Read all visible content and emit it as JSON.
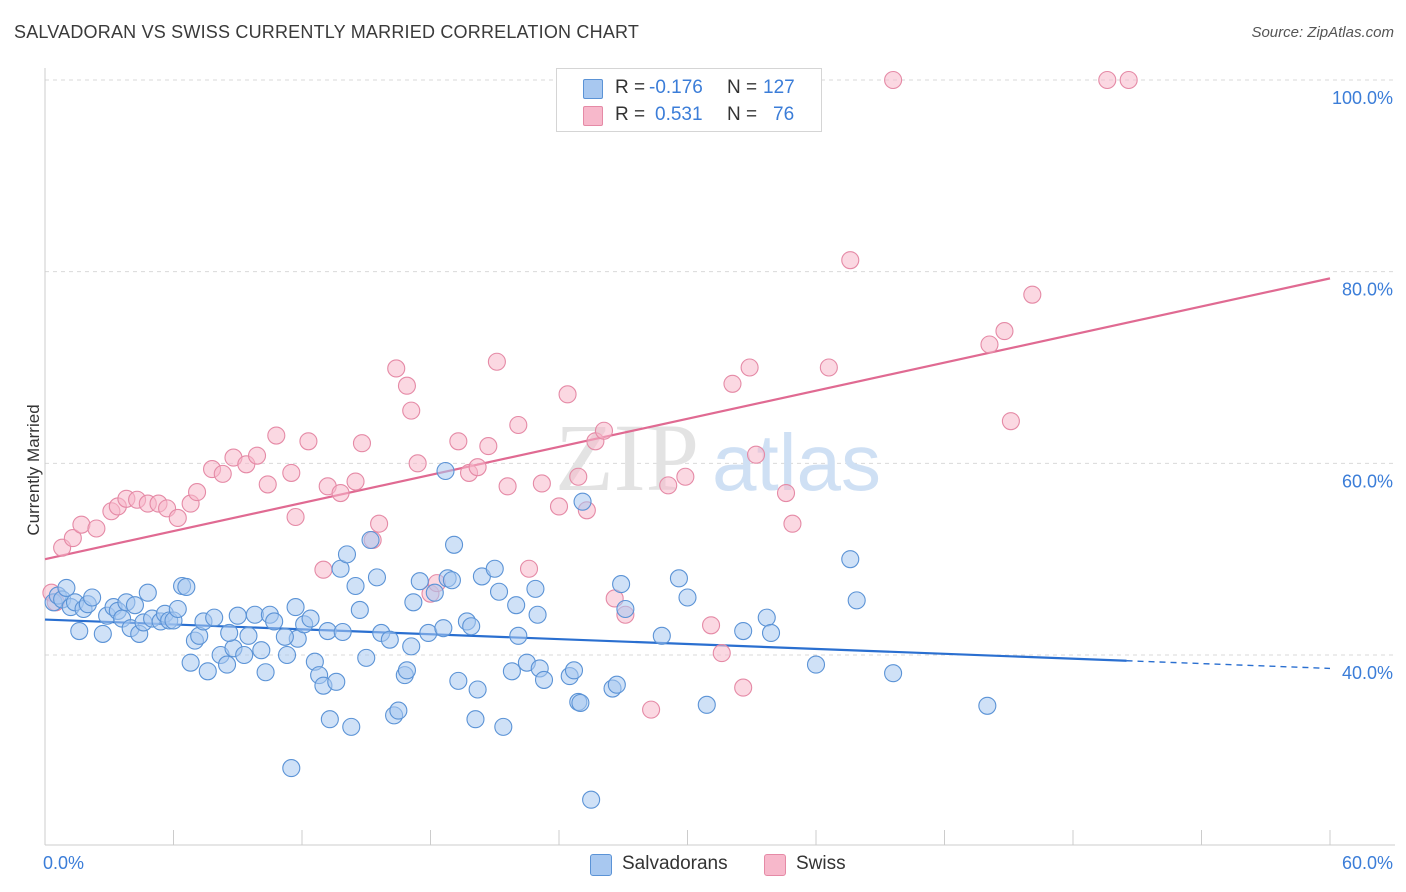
{
  "title": "SALVADORAN VS SWISS CURRENTLY MARRIED CORRELATION CHART",
  "source": "Source: ZipAtlas.com",
  "watermark": {
    "zip": "ZIP",
    "atlas": "atlas"
  },
  "legend": {
    "rows": [
      {
        "r_label": "R =",
        "r_value": "-0.176",
        "n_label": "N =",
        "n_value": "127",
        "color": "#a8c8f0"
      },
      {
        "r_label": "R =",
        "r_value": "0.531",
        "n_label": "N =",
        "n_value": "76",
        "color": "#f7b8cb"
      }
    ]
  },
  "bottom_legend": [
    {
      "label": "Salvadorans",
      "color": "#a8c8f0"
    },
    {
      "label": "Swiss",
      "color": "#f7b8cb"
    }
  ],
  "colors": {
    "blue_fill": "#a8c8f0",
    "blue_stroke": "#5b93d6",
    "blue_line": "#2a6fd0",
    "pink_fill": "#f7b8cb",
    "pink_stroke": "#e58aa6",
    "pink_line": "#e06a92",
    "tick_label": "#3b7dd8",
    "grid": "#d9d9d9"
  },
  "chart_data": {
    "type": "scatter",
    "xlabel": "",
    "ylabel": "Currently Married",
    "xlim": [
      0,
      60
    ],
    "ylim": [
      20,
      102
    ],
    "x_tick_labels": [
      {
        "value": 0,
        "label": "0.0%"
      },
      {
        "value": 60,
        "label": "60.0%"
      }
    ],
    "y_tick_labels": [
      {
        "value": 40,
        "label": "40.0%"
      },
      {
        "value": 60,
        "label": "60.0%"
      },
      {
        "value": 80,
        "label": "80.0%"
      },
      {
        "value": 100,
        "label": "100.0%"
      }
    ],
    "grid": true,
    "series": [
      {
        "name": "Salvadorans",
        "points": [
          [
            0.4,
            45.5
          ],
          [
            0.6,
            46.2
          ],
          [
            0.8,
            45.8
          ],
          [
            1.0,
            47.0
          ],
          [
            1.2,
            45.0
          ],
          [
            1.4,
            45.5
          ],
          [
            1.6,
            42.5
          ],
          [
            1.8,
            44.8
          ],
          [
            2.0,
            45.3
          ],
          [
            2.2,
            46.0
          ],
          [
            2.7,
            42.2
          ],
          [
            2.9,
            44.1
          ],
          [
            3.2,
            45.0
          ],
          [
            3.4,
            44.6
          ],
          [
            3.6,
            43.8
          ],
          [
            3.8,
            45.5
          ],
          [
            4.0,
            42.8
          ],
          [
            4.2,
            45.2
          ],
          [
            4.4,
            42.2
          ],
          [
            4.6,
            43.4
          ],
          [
            4.8,
            46.5
          ],
          [
            5.0,
            43.8
          ],
          [
            5.4,
            43.5
          ],
          [
            5.6,
            44.3
          ],
          [
            5.8,
            43.6
          ],
          [
            6.0,
            43.6
          ],
          [
            6.2,
            44.8
          ],
          [
            6.4,
            47.2
          ],
          [
            6.6,
            47.1
          ],
          [
            6.8,
            39.2
          ],
          [
            7.0,
            41.5
          ],
          [
            7.2,
            42.0
          ],
          [
            7.4,
            43.5
          ],
          [
            7.6,
            38.3
          ],
          [
            7.9,
            43.9
          ],
          [
            8.2,
            40.0
          ],
          [
            8.5,
            39.0
          ],
          [
            8.8,
            40.7
          ],
          [
            9.0,
            44.1
          ],
          [
            9.3,
            40.0
          ],
          [
            9.5,
            42.0
          ],
          [
            9.8,
            44.2
          ],
          [
            10.1,
            40.5
          ],
          [
            10.3,
            38.2
          ],
          [
            10.5,
            44.2
          ],
          [
            10.7,
            43.5
          ],
          [
            11.3,
            40.0
          ],
          [
            11.5,
            28.2
          ],
          [
            11.7,
            45.0
          ],
          [
            11.8,
            41.7
          ],
          [
            12.1,
            43.2
          ],
          [
            12.4,
            43.8
          ],
          [
            12.6,
            39.3
          ],
          [
            12.8,
            37.9
          ],
          [
            13.0,
            36.8
          ],
          [
            13.2,
            42.5
          ],
          [
            13.3,
            33.3
          ],
          [
            13.6,
            37.2
          ],
          [
            13.8,
            49.0
          ],
          [
            13.9,
            42.4
          ],
          [
            14.1,
            50.5
          ],
          [
            14.3,
            32.5
          ],
          [
            14.5,
            47.2
          ],
          [
            14.7,
            44.7
          ],
          [
            15.0,
            39.7
          ],
          [
            15.2,
            52.0
          ],
          [
            15.5,
            48.1
          ],
          [
            15.7,
            42.3
          ],
          [
            16.1,
            41.6
          ],
          [
            16.3,
            33.7
          ],
          [
            16.5,
            34.2
          ],
          [
            16.8,
            37.9
          ],
          [
            16.9,
            38.4
          ],
          [
            17.2,
            45.5
          ],
          [
            17.5,
            47.7
          ],
          [
            17.9,
            42.3
          ],
          [
            18.2,
            46.5
          ],
          [
            18.6,
            42.8
          ],
          [
            18.8,
            48.0
          ],
          [
            19.0,
            47.8
          ],
          [
            19.1,
            51.5
          ],
          [
            19.3,
            37.3
          ],
          [
            19.7,
            43.5
          ],
          [
            19.9,
            43.0
          ],
          [
            20.1,
            33.3
          ],
          [
            20.2,
            36.4
          ],
          [
            20.4,
            48.2
          ],
          [
            21.0,
            49.0
          ],
          [
            21.2,
            46.6
          ],
          [
            21.4,
            32.5
          ],
          [
            21.8,
            38.3
          ],
          [
            22.1,
            42.0
          ],
          [
            22.5,
            39.2
          ],
          [
            22.9,
            46.9
          ],
          [
            23.0,
            44.2
          ],
          [
            23.1,
            38.6
          ],
          [
            23.3,
            37.4
          ],
          [
            24.5,
            37.8
          ],
          [
            24.7,
            38.4
          ],
          [
            24.9,
            35.1
          ],
          [
            25.0,
            35.0
          ],
          [
            25.1,
            56.0
          ],
          [
            25.5,
            24.9
          ],
          [
            26.5,
            36.5
          ],
          [
            26.7,
            36.9
          ],
          [
            26.9,
            47.4
          ],
          [
            27.1,
            44.8
          ],
          [
            28.8,
            42.0
          ],
          [
            29.6,
            48.0
          ],
          [
            30.0,
            46.0
          ],
          [
            30.9,
            34.8
          ],
          [
            32.6,
            42.5
          ],
          [
            33.7,
            43.9
          ],
          [
            33.9,
            42.3
          ],
          [
            36.0,
            39.0
          ],
          [
            37.6,
            50.0
          ],
          [
            37.9,
            45.7
          ],
          [
            39.6,
            38.1
          ],
          [
            44.0,
            34.7
          ],
          [
            18.7,
            59.2
          ],
          [
            11.2,
            41.9
          ],
          [
            8.6,
            42.3
          ],
          [
            17.1,
            40.9
          ],
          [
            22.0,
            45.2
          ]
        ]
      },
      {
        "name": "Swiss",
        "points": [
          [
            0.3,
            46.5
          ],
          [
            0.5,
            45.5
          ],
          [
            0.8,
            51.2
          ],
          [
            1.3,
            52.2
          ],
          [
            1.7,
            53.6
          ],
          [
            2.4,
            53.2
          ],
          [
            3.1,
            55.0
          ],
          [
            3.4,
            55.5
          ],
          [
            3.8,
            56.3
          ],
          [
            4.3,
            56.2
          ],
          [
            4.8,
            55.8
          ],
          [
            5.3,
            55.8
          ],
          [
            5.7,
            55.3
          ],
          [
            6.2,
            54.3
          ],
          [
            6.8,
            55.8
          ],
          [
            7.1,
            57.0
          ],
          [
            7.8,
            59.4
          ],
          [
            8.3,
            58.9
          ],
          [
            8.8,
            60.6
          ],
          [
            9.4,
            59.9
          ],
          [
            9.9,
            60.8
          ],
          [
            10.4,
            57.8
          ],
          [
            10.8,
            62.9
          ],
          [
            11.5,
            59.0
          ],
          [
            11.7,
            54.4
          ],
          [
            12.3,
            62.3
          ],
          [
            13.0,
            48.9
          ],
          [
            13.2,
            57.6
          ],
          [
            13.8,
            56.9
          ],
          [
            14.5,
            58.1
          ],
          [
            14.8,
            62.1
          ],
          [
            15.3,
            52.0
          ],
          [
            15.6,
            53.7
          ],
          [
            16.4,
            69.9
          ],
          [
            16.9,
            68.1
          ],
          [
            17.1,
            65.5
          ],
          [
            17.4,
            60.0
          ],
          [
            18.0,
            46.4
          ],
          [
            18.3,
            47.5
          ],
          [
            19.3,
            62.3
          ],
          [
            19.8,
            59.0
          ],
          [
            20.2,
            59.6
          ],
          [
            20.7,
            61.8
          ],
          [
            21.1,
            70.6
          ],
          [
            21.6,
            57.6
          ],
          [
            22.1,
            64.0
          ],
          [
            22.6,
            49.0
          ],
          [
            23.2,
            57.9
          ],
          [
            24.0,
            55.5
          ],
          [
            24.4,
            67.2
          ],
          [
            24.9,
            58.6
          ],
          [
            25.3,
            55.1
          ],
          [
            25.7,
            62.3
          ],
          [
            26.1,
            63.4
          ],
          [
            26.6,
            45.9
          ],
          [
            27.1,
            44.2
          ],
          [
            28.3,
            34.3
          ],
          [
            29.1,
            57.7
          ],
          [
            29.9,
            58.6
          ],
          [
            31.1,
            43.1
          ],
          [
            31.6,
            40.2
          ],
          [
            32.1,
            68.3
          ],
          [
            32.6,
            36.6
          ],
          [
            32.9,
            70.0
          ],
          [
            33.2,
            60.9
          ],
          [
            34.6,
            56.9
          ],
          [
            34.9,
            53.7
          ],
          [
            36.6,
            70.0
          ],
          [
            37.6,
            81.2
          ],
          [
            39.6,
            100.0
          ],
          [
            44.1,
            72.4
          ],
          [
            44.8,
            73.8
          ],
          [
            45.1,
            64.4
          ],
          [
            46.1,
            77.6
          ],
          [
            49.6,
            100.0
          ],
          [
            50.6,
            100.0
          ]
        ]
      }
    ],
    "trendlines": [
      {
        "series": "Salvadorans",
        "x0": 0,
        "y0": 43.7,
        "x1": 50.5,
        "y1": 39.4,
        "dashed_to": 60,
        "dashed_y": 38.6
      },
      {
        "series": "Swiss",
        "x0": 0,
        "y0": 50.0,
        "x1": 60,
        "y1": 79.3
      }
    ]
  }
}
